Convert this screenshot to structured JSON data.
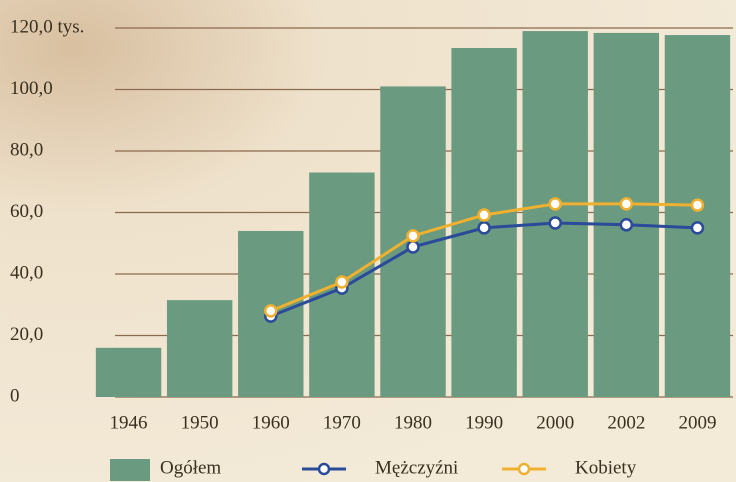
{
  "chart_data": {
    "type": "bar",
    "categories": [
      "1946",
      "1950",
      "1960",
      "1970",
      "1980",
      "1990",
      "2000",
      "2002",
      "2009"
    ],
    "series": [
      {
        "name": "Ogółem",
        "type": "bar",
        "color": "#6a9a7f",
        "values": [
          16,
          31.5,
          54,
          73,
          101,
          113.5,
          119,
          118.4,
          117.7
        ]
      },
      {
        "name": "Mężczyźni",
        "type": "line",
        "color": "#2a4a9a",
        "values": [
          null,
          null,
          26.3,
          35.4,
          48.8,
          55,
          56.6,
          56,
          55
        ]
      },
      {
        "name": "Kobiety",
        "type": "line",
        "color": "#f0b030",
        "values": [
          null,
          null,
          28,
          37.4,
          52.4,
          59.2,
          62.8,
          62.8,
          62.4
        ]
      }
    ],
    "ylim": [
      0,
      120
    ],
    "yticks": [
      0,
      {
        "value": 20,
        "label": "20,0"
      },
      {
        "value": 40,
        "label": "40,0"
      },
      {
        "value": 60,
        "label": "60,0"
      },
      {
        "value": 80,
        "label": "80,0"
      },
      {
        "value": 100,
        "label": "100,0"
      },
      {
        "value": 120,
        "label": "120,0 tys."
      }
    ],
    "grid": true
  }
}
